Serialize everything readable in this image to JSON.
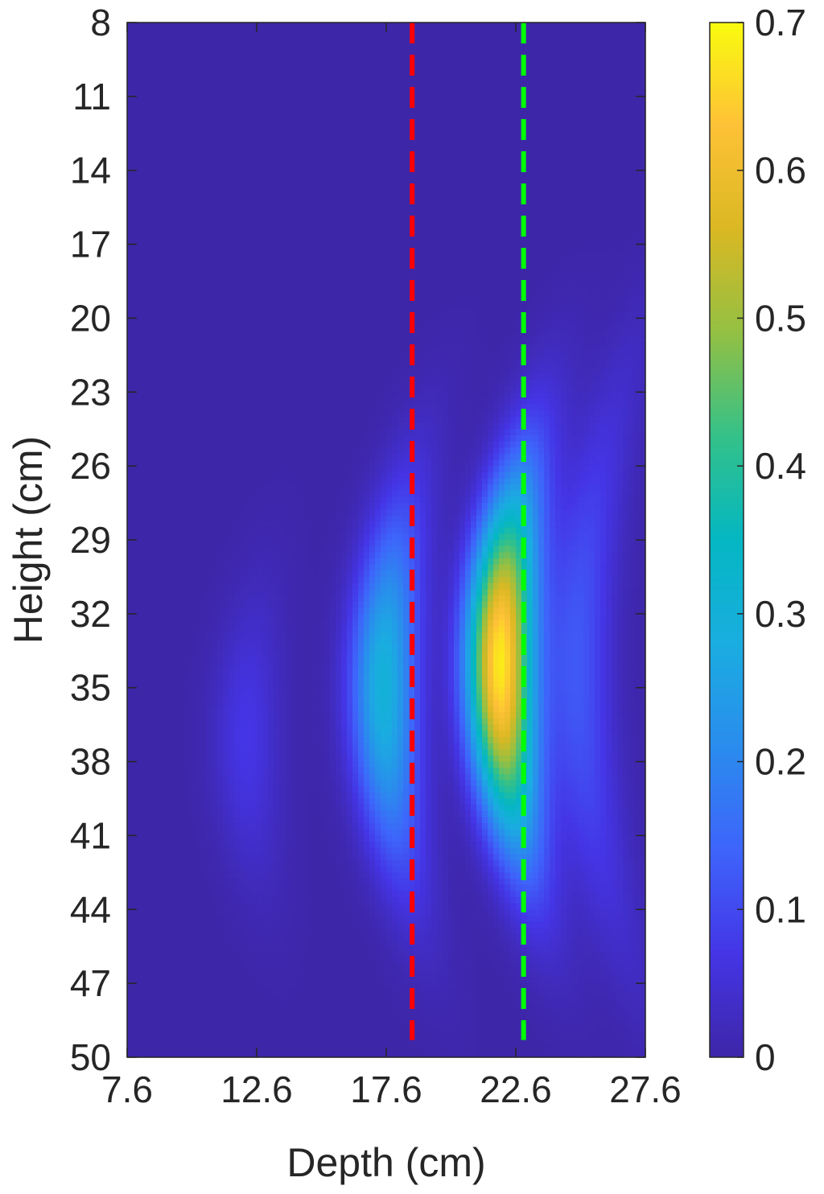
{
  "chart_data": {
    "type": "heatmap",
    "xlabel": "Depth (cm)",
    "ylabel": "Height (cm)",
    "xlim": [
      7.6,
      27.6
    ],
    "ylim": [
      8,
      50
    ],
    "y_reversed": true,
    "x_ticks": [
      "7.6",
      "12.6",
      "17.6",
      "22.6",
      "27.6"
    ],
    "y_ticks": [
      "8",
      "11",
      "14",
      "17",
      "20",
      "23",
      "26",
      "29",
      "32",
      "35",
      "38",
      "41",
      "44",
      "47",
      "50"
    ],
    "colorbar": {
      "range": [
        0,
        0.7
      ],
      "ticks": [
        "0",
        "0.1",
        "0.2",
        "0.3",
        "0.4",
        "0.5",
        "0.6",
        "0.7"
      ],
      "colormap": "parula"
    },
    "reference_lines": [
      {
        "orientation": "vertical",
        "x": 18.6,
        "y_range": [
          8,
          49.3
        ],
        "color": "#ff0000",
        "style": "dashed"
      },
      {
        "orientation": "vertical",
        "x": 22.9,
        "y_range": [
          8,
          49.3
        ],
        "color": "#00ff00",
        "style": "dashed"
      }
    ],
    "field": {
      "description_of_values": "wavefront bands (arcs) centered near height 35 cm",
      "arcs": [
        {
          "center_depth": 22.0,
          "center_height": 34.0,
          "peak": 0.68,
          "height_sigma": 5.0
        },
        {
          "center_depth": 17.5,
          "center_height": 35.0,
          "peak": 0.3,
          "height_sigma": 5.0
        },
        {
          "center_depth": 25.0,
          "center_height": 34.0,
          "peak": 0.12,
          "height_sigma": 7.5
        },
        {
          "center_depth": 12.2,
          "center_height": 37.0,
          "peak": 0.07,
          "height_sigma": 4.0
        }
      ]
    }
  }
}
